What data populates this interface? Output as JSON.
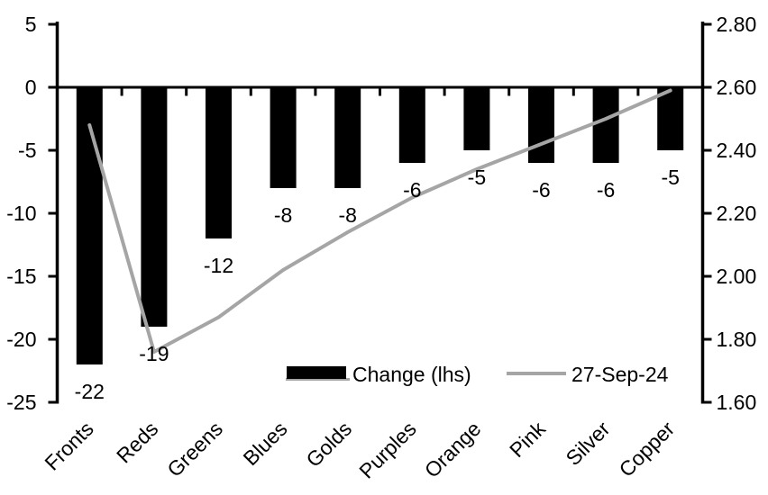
{
  "chart_data": {
    "type": "bar",
    "subtype": "combo-bar-line-dual-axis",
    "title": "",
    "categories": [
      "Fronts",
      "Reds",
      "Greens",
      "Blues",
      "Golds",
      "Purples",
      "Orange",
      "Pink",
      "Silver",
      "Copper"
    ],
    "series": [
      {
        "name": "Change (lhs)",
        "type": "bar",
        "axis": "left",
        "color": "#000000",
        "values": [
          -22,
          -19,
          -12,
          -8,
          -8,
          -6,
          -5,
          -6,
          -6,
          -5
        ]
      },
      {
        "name": "27-Sep-24",
        "type": "line",
        "axis": "right",
        "color": "#a5a5a5",
        "values": [
          2.48,
          1.76,
          1.87,
          2.02,
          2.14,
          2.25,
          2.34,
          2.42,
          2.5,
          2.59
        ]
      }
    ],
    "bar_value_labels": [
      "-22",
      "-19",
      "-12",
      "-8",
      "-8",
      "-6",
      "-5",
      "-6",
      "-6",
      "-5"
    ],
    "left_axis": {
      "tick_labels": [
        "5",
        "0",
        "-5",
        "-10",
        "-15",
        "-20",
        "-25"
      ],
      "tick_values": [
        5,
        0,
        -5,
        -10,
        -15,
        -20,
        -25
      ],
      "min": -25,
      "max": 5
    },
    "right_axis": {
      "tick_labels": [
        "2.80",
        "2.60",
        "2.40",
        "2.20",
        "2.00",
        "1.80",
        "1.60"
      ],
      "tick_values": [
        2.8,
        2.6,
        2.4,
        2.2,
        2.0,
        1.8,
        1.6
      ],
      "min": 1.6,
      "max": 2.8
    },
    "legend": {
      "position": "inside-bottom-center",
      "items": [
        {
          "label": "Change (lhs)",
          "swatch": "bar",
          "color": "#000000"
        },
        {
          "label": "27-Sep-24",
          "swatch": "line",
          "color": "#a5a5a5"
        }
      ]
    },
    "grid": false,
    "colors": {
      "axis": "#000000",
      "bar": "#000000",
      "line": "#a5a5a5",
      "text": "#000000",
      "background": "#ffffff"
    }
  }
}
